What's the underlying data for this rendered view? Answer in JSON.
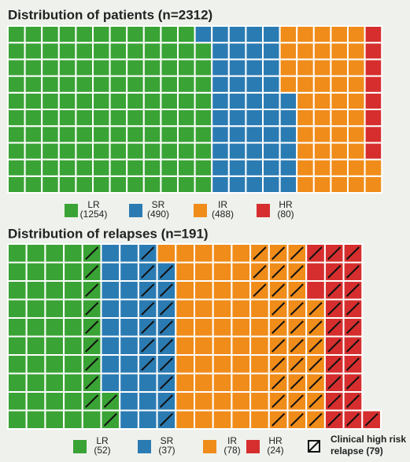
{
  "chart_data": [
    {
      "type": "waffle",
      "title": "Distribution of patients (n=2312)",
      "total": 2312,
      "series": [
        {
          "name": "LR",
          "color": "#3aa335",
          "value": 1254,
          "value_label": "(1254)"
        },
        {
          "name": "SR",
          "color": "#2b7bb3",
          "value": 490,
          "value_label": "(490)"
        },
        {
          "name": "IR",
          "color": "#f08c1a",
          "value": 488,
          "value_label": "(488)"
        },
        {
          "name": "HR",
          "color": "#d62e2e",
          "value": 80,
          "value_label": "(80)"
        }
      ]
    },
    {
      "type": "waffle",
      "title": "Distribution of relapses (n=191)",
      "total": 191,
      "series": [
        {
          "name": "LR",
          "color": "#3aa335",
          "value": 52,
          "value_label": "(52)",
          "hatched": 11
        },
        {
          "name": "SR",
          "color": "#2b7bb3",
          "value": 37,
          "value_label": "(37)",
          "hatched": 16
        },
        {
          "name": "IR",
          "color": "#f08c1a",
          "value": 78,
          "value_label": "(78)",
          "hatched": 30
        },
        {
          "name": "HR",
          "color": "#d62e2e",
          "value": 24,
          "value_label": "(24)",
          "hatched": 22
        }
      ],
      "hatch_label": [
        "Clinical high risk",
        "relapse (79)"
      ]
    }
  ]
}
